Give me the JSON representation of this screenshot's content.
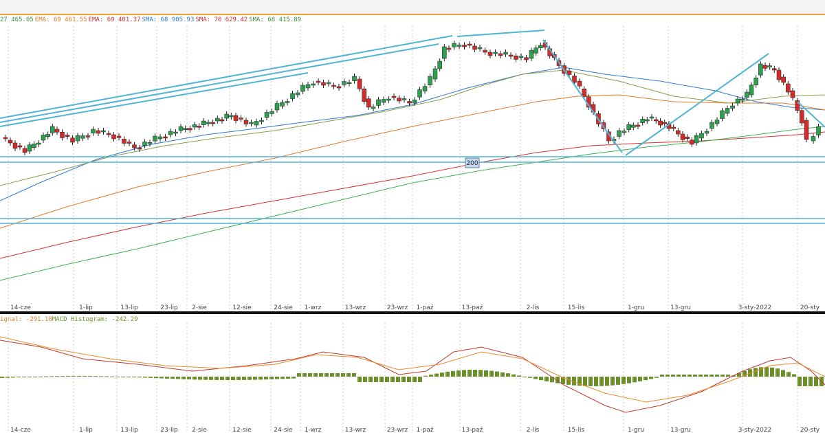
{
  "header": {
    "legend": [
      {
        "text": "27 465.05",
        "color": "#3c8c3c"
      },
      {
        "text": "EMA: 69 461.55",
        "color": "#e07a2a"
      },
      {
        "text": "EMA: 69 401.37",
        "color": "#d03030"
      },
      {
        "text": "SMA: 68 905.93",
        "color": "#2a7ad0"
      },
      {
        "text": "SMA: 70 629.42",
        "color": "#d03030"
      },
      {
        "text": "SMA: 68 415.89",
        "color": "#3c8c3c"
      }
    ]
  },
  "macd_legend": [
    {
      "text": "ignal: -291.10",
      "color": "#e07a2a"
    },
    {
      "text": "MACD Histogram: -242.29",
      "color": "#6b8f2a"
    }
  ],
  "price_marker": {
    "label": "200"
  },
  "chart_data": [
    {
      "type": "candlestick",
      "x_labels": [
        "14-cze",
        "1-lip",
        "13-lip",
        "23-lip",
        "2-sie",
        "12-sie",
        "24-sie",
        "1-wrz",
        "13-wrz",
        "23-wrz",
        "1-paź",
        "13-paź",
        "2-lis",
        "15-lis",
        "1-gru",
        "13-gru",
        "3-sty-2022",
        "20-sty"
      ],
      "colors": {
        "up": "#2e9e4f",
        "down": "#d42a2a",
        "trendline": "#4fb4d4",
        "ema1": "#e07a2a",
        "ema2": "#8a9a4a",
        "sma1": "#2a7ad0",
        "sma2": "#d03030",
        "sma3": "#3cb04c"
      },
      "grid": "vertical dashed"
    },
    {
      "type": "bar",
      "name": "MACD Histogram",
      "x_labels": [
        "14-cze",
        "1-lip",
        "13-lip",
        "23-lip",
        "2-sie",
        "12-sie",
        "24-sie",
        "1-wrz",
        "13-wrz",
        "23-wrz",
        "1-paź",
        "13-paź",
        "2-lis",
        "15-lis",
        "1-gru",
        "13-gru",
        "3-sty-2022",
        "20-sty"
      ],
      "colors": {
        "hist": "#6b8f2a",
        "macd": "#c0392b",
        "signal": "#e8892a"
      }
    }
  ]
}
